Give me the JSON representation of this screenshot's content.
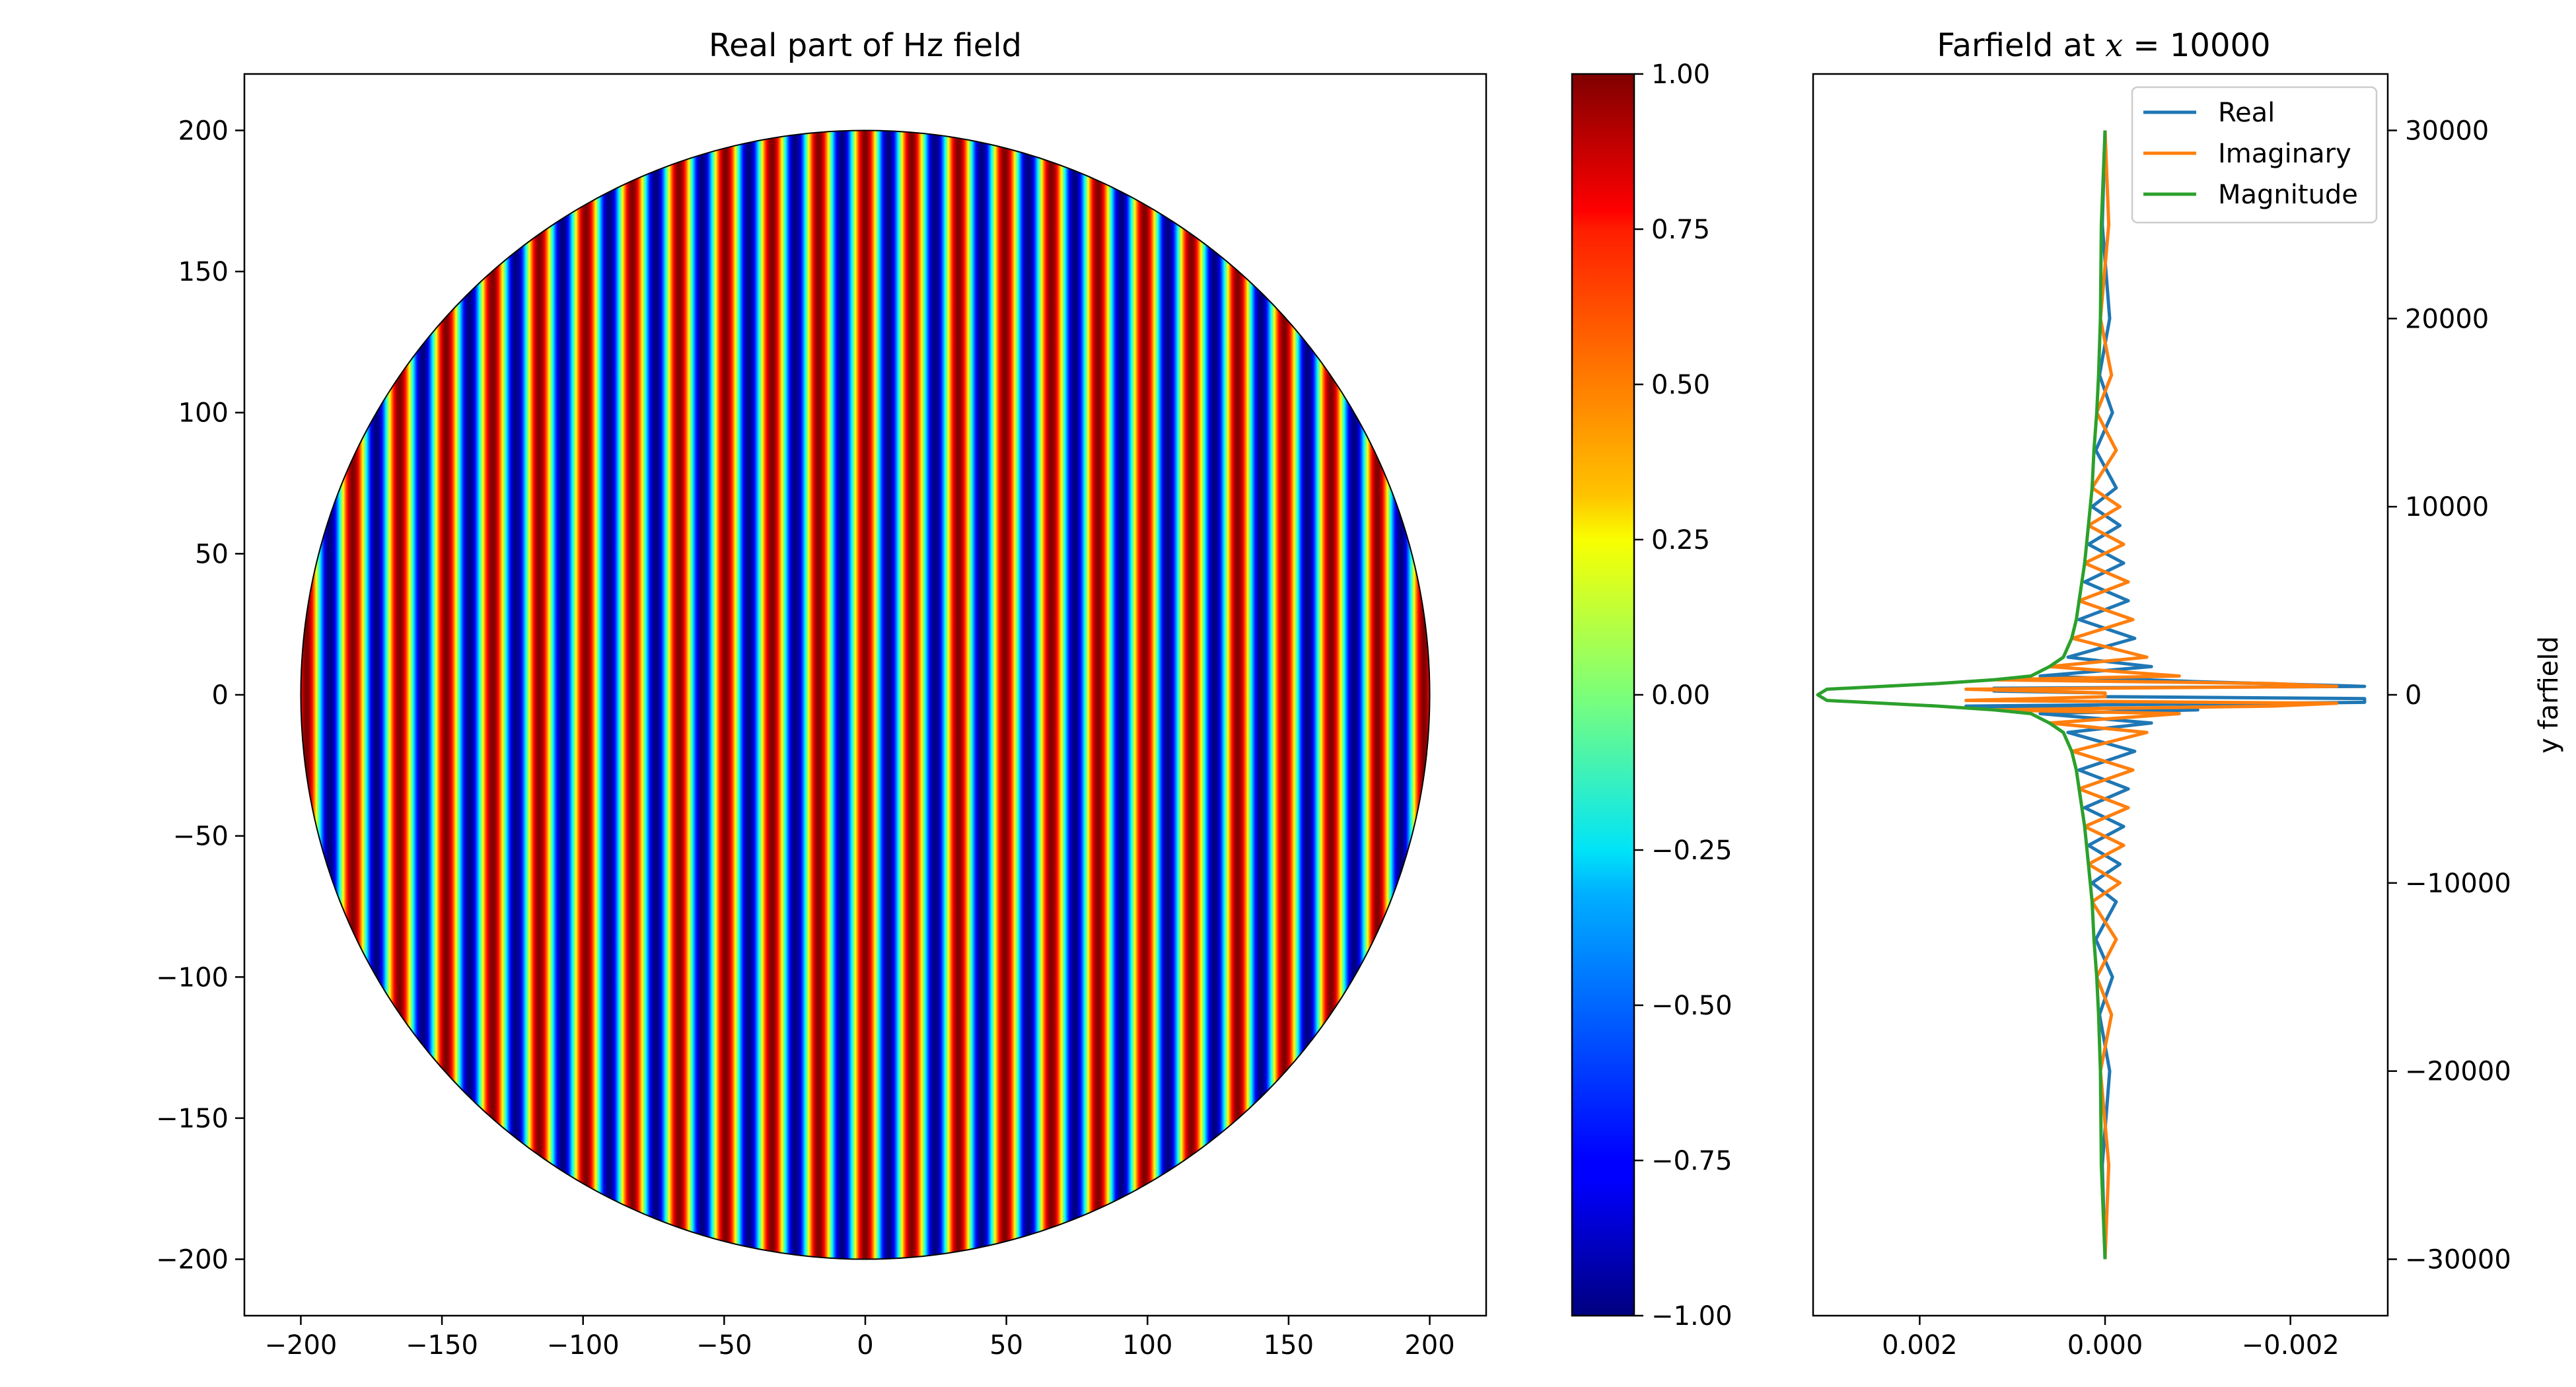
{
  "chart_data": [
    {
      "type": "heatmap",
      "title": "Real part of Hz field",
      "xlabel": "",
      "ylabel": "",
      "xlim": [
        -220,
        220
      ],
      "ylim": [
        -220,
        220
      ],
      "x_ticks": [
        -200,
        -150,
        -100,
        -50,
        0,
        50,
        100,
        150,
        200
      ],
      "y_ticks": [
        -200,
        -150,
        -100,
        -50,
        0,
        50,
        100,
        150,
        200
      ],
      "x_tick_labels": [
        "−200",
        "−150",
        "−100",
        "−50",
        "0",
        "50",
        "100",
        "150",
        "200"
      ],
      "y_tick_labels": [
        "−200",
        "−150",
        "−100",
        "−50",
        "0",
        "50",
        "100",
        "150",
        "200"
      ],
      "domain": {
        "shape": "circle",
        "center": [
          0,
          0
        ],
        "radius": 200
      },
      "field": {
        "function": "cos(k*x)",
        "wavelength": 16.5,
        "phase_at_zero": 0
      },
      "colormap": "jet",
      "grid": false
    },
    {
      "type": "colorbar",
      "range": [
        -1.0,
        1.0
      ],
      "ticks": [
        1.0,
        0.75,
        0.5,
        0.25,
        0.0,
        -0.25,
        -0.5,
        -0.75,
        -1.0
      ],
      "tick_labels": [
        "1.00",
        "0.75",
        "0.50",
        "0.25",
        "0.00",
        "−0.25",
        "−0.50",
        "−0.75",
        "−1.00"
      ],
      "colormap": "jet"
    },
    {
      "type": "line",
      "title_prefix": "Farfield at ",
      "title_var": "x",
      "title_suffix": " = 10000",
      "xlabel": "",
      "ylabel": "y farfield",
      "x_inverted": true,
      "xlim": [
        0.00315,
        -0.00305
      ],
      "ylim": [
        -33000,
        33000
      ],
      "x_ticks": [
        0.002,
        0.0,
        -0.002
      ],
      "x_tick_labels": [
        "0.002",
        "0.000",
        "−0.002"
      ],
      "y_ticks": [
        30000,
        20000,
        10000,
        0,
        -10000,
        -20000,
        -30000
      ],
      "y_tick_labels": [
        "30000",
        "20000",
        "10000",
        "0",
        "−10000",
        "−20000",
        "−30000"
      ],
      "y_axis_position": "right",
      "legend_position": "top-right",
      "series": [
        {
          "name": "Real",
          "color": "#1f77b4",
          "points": [
            [
              0,
              -30000
            ],
            [
              3e-05,
              -25000
            ],
            [
              -5e-05,
              -20000
            ],
            [
              6e-05,
              -17000
            ],
            [
              -8e-05,
              -15000
            ],
            [
              0.0001,
              -13000
            ],
            [
              -0.00012,
              -11000
            ],
            [
              0.00014,
              -10000
            ],
            [
              -0.00016,
              -9000
            ],
            [
              0.00018,
              -8000
            ],
            [
              -0.0002,
              -7000
            ],
            [
              0.00022,
              -6000
            ],
            [
              -0.00025,
              -5000
            ],
            [
              0.00028,
              -4000
            ],
            [
              -0.00032,
              -3000
            ],
            [
              0.0004,
              -2000
            ],
            [
              -0.0005,
              -1500
            ],
            [
              0.0007,
              -1000
            ],
            [
              -0.001,
              -800
            ],
            [
              0.0015,
              -600
            ],
            [
              -0.0028,
              -400
            ],
            [
              -0.0028,
              -200
            ],
            [
              0,
              -100
            ],
            [
              0,
              100
            ],
            [
              0.0012,
              200
            ],
            [
              0.0012,
              350
            ],
            [
              -0.0028,
              450
            ],
            [
              -0.001,
              700
            ],
            [
              0.0007,
              1000
            ],
            [
              -0.0005,
              1500
            ],
            [
              0.0004,
              2000
            ],
            [
              -0.00032,
              3000
            ],
            [
              0.00028,
              4000
            ],
            [
              -0.00025,
              5000
            ],
            [
              0.00022,
              6000
            ],
            [
              -0.0002,
              7000
            ],
            [
              0.00018,
              8000
            ],
            [
              -0.00016,
              9000
            ],
            [
              0.00014,
              10000
            ],
            [
              -0.00012,
              11000
            ],
            [
              0.0001,
              13000
            ],
            [
              -8e-05,
              15000
            ],
            [
              6e-05,
              17000
            ],
            [
              -5e-05,
              20000
            ],
            [
              3e-05,
              25000
            ],
            [
              0,
              30000
            ]
          ]
        },
        {
          "name": "Imaginary",
          "color": "#ff7f0e",
          "points": [
            [
              0,
              -30000
            ],
            [
              -4e-05,
              -25000
            ],
            [
              5e-05,
              -20000
            ],
            [
              -7e-05,
              -17000
            ],
            [
              9e-05,
              -15000
            ],
            [
              -0.00012,
              -13000
            ],
            [
              0.00014,
              -11000
            ],
            [
              -0.00016,
              -10000
            ],
            [
              0.00018,
              -9000
            ],
            [
              -0.0002,
              -8000
            ],
            [
              0.00022,
              -7000
            ],
            [
              -0.00025,
              -6000
            ],
            [
              0.00028,
              -5000
            ],
            [
              -0.0003,
              -4000
            ],
            [
              0.00035,
              -3000
            ],
            [
              -0.00045,
              -2000
            ],
            [
              0.0006,
              -1500
            ],
            [
              -0.0008,
              -1000
            ],
            [
              0.0012,
              -800
            ],
            [
              -0.0018,
              -600
            ],
            [
              -0.0025,
              -450
            ],
            [
              0.0015,
              -300
            ],
            [
              0,
              -100
            ],
            [
              0,
              100
            ],
            [
              0.0015,
              300
            ],
            [
              -0.0025,
              450
            ],
            [
              -0.0018,
              600
            ],
            [
              0.0012,
              800
            ],
            [
              -0.0008,
              1000
            ],
            [
              0.0006,
              1500
            ],
            [
              -0.00045,
              2000
            ],
            [
              0.00035,
              3000
            ],
            [
              -0.0003,
              4000
            ],
            [
              0.00028,
              5000
            ],
            [
              -0.00025,
              6000
            ],
            [
              0.00022,
              7000
            ],
            [
              -0.0002,
              8000
            ],
            [
              0.00018,
              9000
            ],
            [
              -0.00016,
              10000
            ],
            [
              0.00014,
              11000
            ],
            [
              -0.00012,
              13000
            ],
            [
              9e-05,
              15000
            ],
            [
              -7e-05,
              17000
            ],
            [
              5e-05,
              20000
            ],
            [
              -4e-05,
              25000
            ],
            [
              0,
              30000
            ]
          ]
        },
        {
          "name": "Magnitude",
          "color": "#2ca02c",
          "points": [
            [
              0,
              -30000
            ],
            [
              4e-05,
              -25000
            ],
            [
              5e-05,
              -20000
            ],
            [
              7e-05,
              -17000
            ],
            [
              9e-05,
              -15000
            ],
            [
              0.00012,
              -13000
            ],
            [
              0.00014,
              -11000
            ],
            [
              0.00016,
              -10000
            ],
            [
              0.00018,
              -9000
            ],
            [
              0.0002,
              -8000
            ],
            [
              0.00022,
              -7000
            ],
            [
              0.00025,
              -6000
            ],
            [
              0.00028,
              -5000
            ],
            [
              0.00031,
              -4000
            ],
            [
              0.00036,
              -3000
            ],
            [
              0.00045,
              -2000
            ],
            [
              0.0006,
              -1500
            ],
            [
              0.0008,
              -1000
            ],
            [
              0.0012,
              -800
            ],
            [
              0.0018,
              -600
            ],
            [
              0.003,
              -300
            ],
            [
              0.0031,
              0
            ],
            [
              0.003,
              300
            ],
            [
              0.0018,
              600
            ],
            [
              0.0012,
              800
            ],
            [
              0.0008,
              1000
            ],
            [
              0.0006,
              1500
            ],
            [
              0.00045,
              2000
            ],
            [
              0.00036,
              3000
            ],
            [
              0.00031,
              4000
            ],
            [
              0.00028,
              5000
            ],
            [
              0.00025,
              6000
            ],
            [
              0.00022,
              7000
            ],
            [
              0.0002,
              8000
            ],
            [
              0.00018,
              9000
            ],
            [
              0.00016,
              10000
            ],
            [
              0.00014,
              11000
            ],
            [
              0.00012,
              13000
            ],
            [
              9e-05,
              15000
            ],
            [
              7e-05,
              17000
            ],
            [
              5e-05,
              20000
            ],
            [
              4e-05,
              25000
            ],
            [
              0,
              30000
            ]
          ]
        }
      ],
      "grid": false
    }
  ]
}
